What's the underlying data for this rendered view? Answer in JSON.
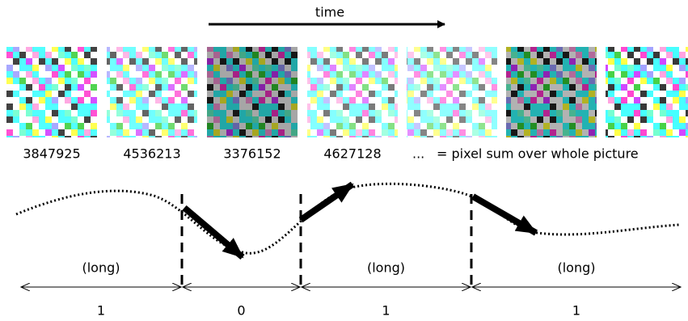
{
  "header": {
    "title": "time"
  },
  "frames": [
    {
      "sum": 3847925
    },
    {
      "sum": 4536213
    },
    {
      "sum": 3376152
    },
    {
      "sum": 4627128
    }
  ],
  "ellipsis": "...",
  "caption": "= pixel sum over whole picture",
  "segments": [
    {
      "label": "(long)",
      "bit": 1
    },
    {
      "bit": 0
    },
    {
      "label": "(long)",
      "bit": 1
    },
    {
      "label": "(long)",
      "bit": 1
    }
  ]
}
